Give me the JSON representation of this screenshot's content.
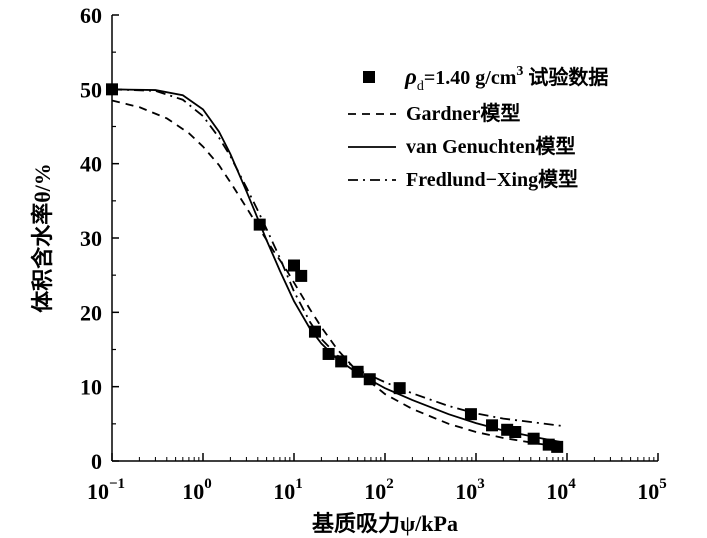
{
  "chart_data": {
    "type": "scatter+line",
    "xscale": "log",
    "xlim": [
      0.1,
      100000
    ],
    "ylim": [
      0,
      60
    ],
    "xlabel": "基质吸力ψ/kPa",
    "ylabel": "体积含水率θ/%",
    "x_ticks": [
      {
        "value": 0.1,
        "base": "10",
        "exp": "−1"
      },
      {
        "value": 1,
        "base": "10",
        "exp": "0"
      },
      {
        "value": 10,
        "base": "10",
        "exp": "1"
      },
      {
        "value": 100,
        "base": "10",
        "exp": "2"
      },
      {
        "value": 1000,
        "base": "10",
        "exp": "3"
      },
      {
        "value": 10000,
        "base": "10",
        "exp": "4"
      },
      {
        "value": 100000,
        "base": "10",
        "exp": "5"
      }
    ],
    "y_ticks": [
      "0",
      "10",
      "20",
      "30",
      "40",
      "50",
      "60"
    ],
    "legend": {
      "placement": "top-right",
      "items": [
        {
          "key": "experimental",
          "symbol": "square",
          "rho": "ρ",
          "sub": "d",
          "text": "=1.40 g/cm",
          "sup": "3",
          "tail": " 试验数据"
        },
        {
          "key": "gardner",
          "style": "dashed",
          "text": "Gardner模型"
        },
        {
          "key": "vg",
          "style": "solid",
          "text": "van Genuchten模型"
        },
        {
          "key": "fx",
          "style": "dashdot",
          "text": "Fredlund−Xing模型"
        }
      ]
    },
    "experimental_points": [
      {
        "x": 0.1,
        "y": 50.0
      },
      {
        "x": 4.2,
        "y": 31.8
      },
      {
        "x": 10.0,
        "y": 26.3
      },
      {
        "x": 12.0,
        "y": 24.9
      },
      {
        "x": 17.0,
        "y": 17.4
      },
      {
        "x": 24.0,
        "y": 14.4
      },
      {
        "x": 33.0,
        "y": 13.4
      },
      {
        "x": 50.0,
        "y": 12.0
      },
      {
        "x": 68.0,
        "y": 11.0
      },
      {
        "x": 145.0,
        "y": 9.8
      },
      {
        "x": 880.0,
        "y": 6.3
      },
      {
        "x": 1500.0,
        "y": 4.8
      },
      {
        "x": 2200.0,
        "y": 4.2
      },
      {
        "x": 2700.0,
        "y": 3.9
      },
      {
        "x": 4300.0,
        "y": 3.0
      },
      {
        "x": 6300.0,
        "y": 2.2
      },
      {
        "x": 7800.0,
        "y": 1.9
      }
    ],
    "series": [
      {
        "name": "van Genuchten模型",
        "style": "solid",
        "x": [
          0.1,
          0.3,
          0.6,
          1.0,
          1.5,
          2.0,
          3.0,
          4.0,
          5.0,
          7.0,
          10,
          15,
          20,
          30,
          50,
          100,
          200,
          500,
          1000,
          2000,
          5000,
          9000
        ],
        "y": [
          50.0,
          49.9,
          49.2,
          47.3,
          44.3,
          41.3,
          36.3,
          32.6,
          29.7,
          25.6,
          21.5,
          17.8,
          15.8,
          13.7,
          11.8,
          9.8,
          8.2,
          6.3,
          5.1,
          4.1,
          3.1,
          2.5
        ]
      },
      {
        "name": "Gardner模型",
        "style": "dashed",
        "x": [
          0.1,
          0.2,
          0.4,
          0.7,
          1.0,
          1.5,
          2.0,
          3.0,
          4.0,
          6.0,
          8.0,
          10,
          15,
          20,
          30,
          50,
          100,
          200,
          500,
          1000,
          2000,
          5000,
          9000
        ],
        "y": [
          48.5,
          47.6,
          46.1,
          44.1,
          42.3,
          39.8,
          37.5,
          34.1,
          31.6,
          28.2,
          26.0,
          24.0,
          20.4,
          18.0,
          15.0,
          12.0,
          9.0,
          7.0,
          5.0,
          3.9,
          3.1,
          2.3,
          1.9
        ]
      },
      {
        "name": "Fredlund−Xing模型",
        "style": "dashdot",
        "x": [
          0.1,
          0.3,
          0.6,
          1.0,
          1.5,
          2.0,
          3.0,
          4.0,
          5.0,
          7.0,
          10,
          15,
          20,
          30,
          50,
          100,
          200,
          500,
          1000,
          2000,
          5000,
          9000
        ],
        "y": [
          50.0,
          49.8,
          48.6,
          46.4,
          43.5,
          41.0,
          36.8,
          33.7,
          31.2,
          27.3,
          22.8,
          18.7,
          16.4,
          14.2,
          12.3,
          10.6,
          9.1,
          7.4,
          6.4,
          5.7,
          5.1,
          4.7
        ]
      }
    ]
  }
}
